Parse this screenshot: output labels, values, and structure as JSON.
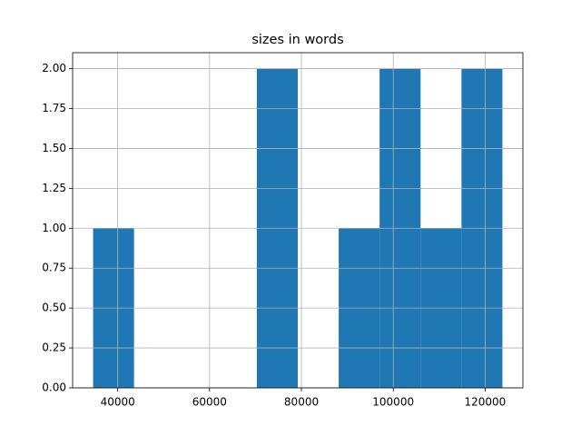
{
  "chart_data": {
    "type": "histogram",
    "title": "sizes in words",
    "bins": [
      34640,
      43550,
      52470,
      61380,
      70290,
      79210,
      88120,
      97030,
      105950,
      114860,
      123770
    ],
    "values": [
      1,
      0,
      0,
      0,
      2,
      0,
      1,
      2,
      1,
      2
    ],
    "color": "#1f77b4",
    "xlim": [
      30180,
      128230
    ],
    "xticks": [
      40000,
      60000,
      80000,
      100000,
      120000
    ],
    "ylim": [
      0,
      2.1
    ],
    "yticks": [
      {
        "value": 0,
        "label": "0.00"
      },
      {
        "value": 0.25,
        "label": "0.25"
      },
      {
        "value": 0.5,
        "label": "0.50"
      },
      {
        "value": 0.75,
        "label": "0.75"
      },
      {
        "value": 1,
        "label": "1.00"
      },
      {
        "value": 1.25,
        "label": "1.25"
      },
      {
        "value": 1.5,
        "label": "1.50"
      },
      {
        "value": 1.75,
        "label": "1.75"
      },
      {
        "value": 2,
        "label": "2.00"
      }
    ],
    "grid": true
  }
}
